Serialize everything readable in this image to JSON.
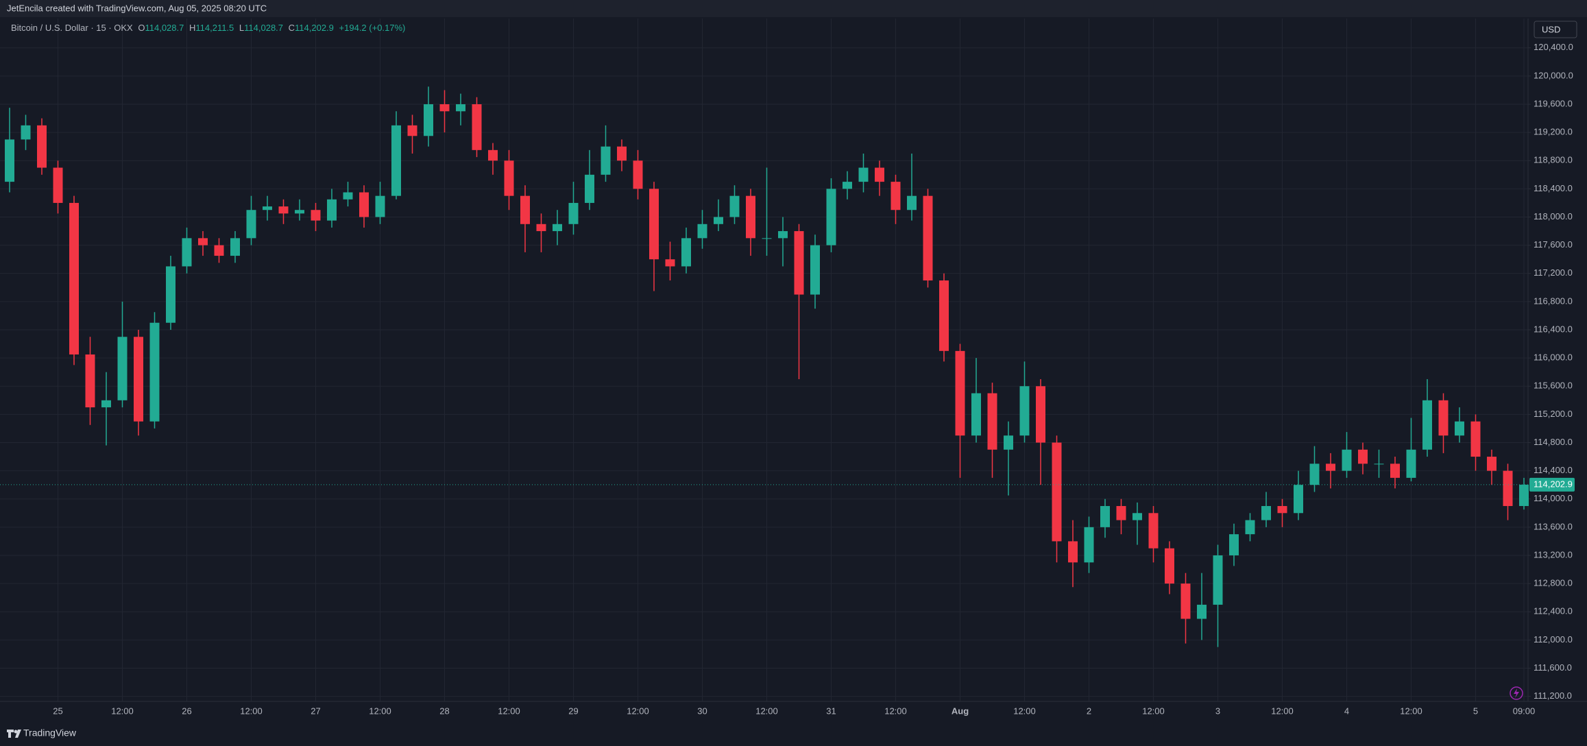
{
  "header": {
    "credit": "JetEncila created with TradingView.com, Aug 05, 2025 08:20 UTC"
  },
  "footer": {
    "brand": "TradingView"
  },
  "chart_data": {
    "type": "candlestick",
    "currency": "USD",
    "legend": {
      "symbol": "Bitcoin / U.S. Dollar · 15 · OKX",
      "o_key": "O",
      "open": "114,028.7",
      "h_key": "H",
      "high": "114,211.5",
      "l_key": "L",
      "low": "114,028.7",
      "c_key": "C",
      "close": "114,202.9",
      "change": "+194.2 (+0.17%)"
    },
    "categories": [
      null,
      null,
      null,
      "25",
      null,
      null,
      null,
      "12:00",
      null,
      null,
      null,
      "26",
      null,
      null,
      null,
      "12:00",
      null,
      null,
      null,
      "27",
      null,
      null,
      null,
      "12:00",
      null,
      null,
      null,
      "28",
      null,
      null,
      null,
      "12:00",
      null,
      null,
      null,
      "29",
      null,
      null,
      null,
      "12:00",
      null,
      null,
      null,
      "30",
      null,
      null,
      null,
      "12:00",
      null,
      null,
      null,
      "31",
      null,
      null,
      null,
      "12:00",
      null,
      null,
      null,
      "Aug",
      null,
      null,
      null,
      "12:00",
      null,
      null,
      null,
      "2",
      null,
      null,
      null,
      "12:00",
      null,
      null,
      null,
      "3",
      null,
      null,
      null,
      "12:00",
      null,
      null,
      null,
      "4",
      null,
      null,
      null,
      "12:00",
      null,
      null,
      null,
      "5",
      null,
      null,
      "09:00"
    ],
    "open": [
      118500,
      119100,
      119300,
      118700,
      118200,
      116050,
      115300,
      115400,
      116300,
      115100,
      116500,
      117300,
      117700,
      117600,
      117450,
      117700,
      118100,
      118150,
      118050,
      118100,
      117950,
      118250,
      118350,
      118000,
      118300,
      119300,
      119150,
      119600,
      119500,
      119600,
      118950,
      118800,
      118300,
      117900,
      117800,
      117900,
      118200,
      118600,
      119000,
      118800,
      118400,
      117400,
      117300,
      117700,
      117900,
      118000,
      118300,
      117700,
      117700,
      117800,
      116900,
      117600,
      118400,
      118500,
      118700,
      118500,
      118100,
      118300,
      117100,
      116100,
      114900,
      115500,
      114700,
      114900,
      115600,
      114800,
      113400,
      113100,
      113600,
      113900,
      113700,
      113800,
      113300,
      112800,
      112300,
      112500,
      113200,
      113500,
      113700,
      113900,
      113800,
      114200,
      114500,
      114400,
      114700,
      114500,
      114500,
      114300,
      114700,
      115400,
      114900,
      115100,
      114600,
      114400,
      113900
    ],
    "high": [
      119550,
      119450,
      119400,
      118800,
      118300,
      116300,
      115800,
      116800,
      116400,
      116650,
      117450,
      117850,
      117800,
      117700,
      117800,
      118300,
      118300,
      118250,
      118250,
      118200,
      118400,
      118500,
      118450,
      118500,
      119500,
      119450,
      119850,
      119800,
      119750,
      119700,
      119050,
      118950,
      118450,
      118050,
      118100,
      118500,
      118950,
      119300,
      119100,
      118950,
      118500,
      117650,
      117850,
      118100,
      118250,
      118450,
      118400,
      118700,
      118000,
      117900,
      117750,
      118550,
      118650,
      118900,
      118800,
      118600,
      118900,
      118400,
      117200,
      116200,
      116000,
      115650,
      115100,
      115950,
      115700,
      114900,
      113700,
      113750,
      114000,
      114000,
      113950,
      113900,
      113400,
      112950,
      112950,
      113350,
      113650,
      113800,
      114100,
      114000,
      114400,
      114750,
      114650,
      114950,
      114800,
      114700,
      114600,
      115150,
      115700,
      115500,
      115300,
      115200,
      114700,
      114500,
      114300
    ],
    "low": [
      118350,
      118950,
      118600,
      118050,
      115900,
      115050,
      114760,
      115300,
      114900,
      115000,
      116400,
      117200,
      117450,
      117350,
      117350,
      117600,
      117950,
      117900,
      117950,
      117800,
      117850,
      118150,
      117850,
      117900,
      118250,
      118900,
      119000,
      119200,
      119300,
      118850,
      118600,
      118100,
      117500,
      117500,
      117600,
      117750,
      118100,
      118500,
      118650,
      118250,
      116950,
      117100,
      117200,
      117550,
      117800,
      117900,
      117450,
      117450,
      117300,
      115700,
      116700,
      117500,
      118250,
      118350,
      118300,
      117900,
      117950,
      117000,
      115950,
      114300,
      114800,
      114300,
      114050,
      114800,
      114200,
      113100,
      112750,
      112950,
      113450,
      113500,
      113350,
      113100,
      112650,
      111950,
      112000,
      111900,
      113050,
      113400,
      113600,
      113600,
      113700,
      114100,
      114150,
      114300,
      114350,
      114300,
      114150,
      114250,
      114600,
      114650,
      114800,
      114400,
      114200,
      113700,
      113850
    ],
    "close": [
      119100,
      119300,
      118700,
      118200,
      116050,
      115300,
      115400,
      116300,
      115100,
      116500,
      117300,
      117700,
      117600,
      117450,
      117700,
      118100,
      118150,
      118050,
      118100,
      117950,
      118250,
      118350,
      118000,
      118300,
      119300,
      119150,
      119600,
      119500,
      119600,
      118950,
      118800,
      118300,
      117900,
      117800,
      117900,
      118200,
      118600,
      119000,
      118800,
      118400,
      117400,
      117300,
      117700,
      117900,
      118000,
      118300,
      117700,
      117700,
      117800,
      116900,
      117600,
      118400,
      118500,
      118700,
      118500,
      118100,
      118300,
      117100,
      116100,
      114900,
      115500,
      114700,
      114900,
      115600,
      114800,
      113400,
      113100,
      113600,
      113900,
      113700,
      113800,
      113300,
      112800,
      112300,
      112500,
      113200,
      113500,
      113700,
      113900,
      113800,
      114200,
      114500,
      114400,
      114700,
      114500,
      114500,
      114300,
      114700,
      115400,
      114900,
      115100,
      114600,
      114400,
      113900,
      114202.9
    ],
    "up_color": "#22ab94",
    "down_color": "#f23645",
    "price_line": {
      "value": 114202.9,
      "label": "114,202.9"
    },
    "ylim": [
      111128,
      120816
    ],
    "yticks": [
      {
        "value": 111200,
        "label": "111,200.0"
      },
      {
        "value": 111600,
        "label": "111,600.0"
      },
      {
        "value": 112000,
        "label": "112,000.0"
      },
      {
        "value": 112400,
        "label": "112,400.0"
      },
      {
        "value": 112800,
        "label": "112,800.0"
      },
      {
        "value": 113200,
        "label": "113,200.0"
      },
      {
        "value": 113600,
        "label": "113,600.0"
      },
      {
        "value": 114000,
        "label": "114,000.0"
      },
      {
        "value": 114400,
        "label": "114,400.0"
      },
      {
        "value": 114800,
        "label": "114,800.0"
      },
      {
        "value": 115200,
        "label": "115,200.0"
      },
      {
        "value": 115600,
        "label": "115,600.0"
      },
      {
        "value": 116000,
        "label": "116,000.0"
      },
      {
        "value": 116400,
        "label": "116,400.0"
      },
      {
        "value": 116800,
        "label": "116,800.0"
      },
      {
        "value": 117200,
        "label": "117,200.0"
      },
      {
        "value": 117600,
        "label": "117,600.0"
      },
      {
        "value": 118000,
        "label": "118,000.0"
      },
      {
        "value": 118400,
        "label": "118,400.0"
      },
      {
        "value": 118800,
        "label": "118,800.0"
      },
      {
        "value": 119200,
        "label": "119,200.0"
      },
      {
        "value": 119600,
        "label": "119,600.0"
      },
      {
        "value": 120000,
        "label": "120,000.0"
      },
      {
        "value": 120400,
        "label": "120,400.0"
      }
    ],
    "grid": true
  }
}
